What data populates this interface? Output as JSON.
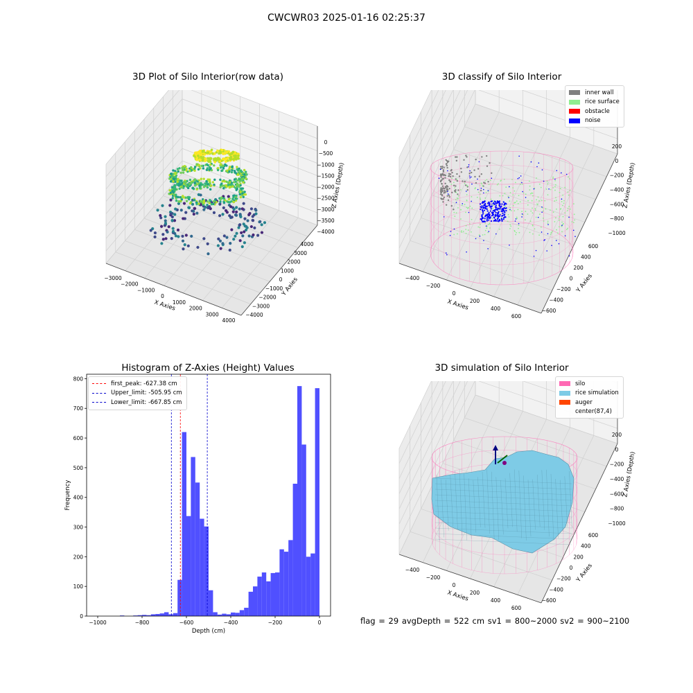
{
  "suptitle": "CWCWR03 2025-01-16 02:25:37",
  "footer": "flag = 29  avgDepth = 522 cm  sv1 = 800~2000  sv2 = 900~2100",
  "colors": {
    "hist_bar": "#4d4dff",
    "first_peak": "#ff0000",
    "limits": "#0000cc",
    "inner_wall": "#808080",
    "rice_surface": "#90ee90",
    "obstacle": "#ff0000",
    "noise": "#0000ff",
    "silo": "#ff69b4",
    "rice_simulation": "#7ecbe6",
    "auger": "#ff4500"
  },
  "chart_data": [
    {
      "type": "scatter",
      "dimension": "3d",
      "title": "3D Plot of Silo Interior(row data)",
      "xlabel": "X Axies",
      "ylabel": "Y Axies",
      "zlabel": "Z Axies (Depth)",
      "xticks": [
        "−3000",
        "−2000",
        "−1000",
        "0",
        "1000",
        "2000",
        "3000",
        "4000"
      ],
      "yticks": [
        "−4000",
        "−3000",
        "−2000",
        "−1000",
        "0",
        "1000",
        "2000",
        "3000",
        "4000"
      ],
      "zticks": [
        "0",
        "−500",
        "−1000",
        "−1500",
        "−2000",
        "−2500",
        "−3000",
        "−3500",
        "−4000"
      ],
      "colormap": "viridis"
    },
    {
      "type": "scatter",
      "dimension": "3d",
      "title": "3D classify of Silo Interior",
      "xlabel": "X Axies",
      "ylabel": "Y Axies",
      "zlabel": "Z Axies (Depth)",
      "xticks": [
        "−400",
        "−200",
        "0",
        "200",
        "400",
        "600"
      ],
      "yticks": [
        "−600",
        "−400",
        "−200",
        "0",
        "200",
        "400",
        "600"
      ],
      "zticks": [
        "200",
        "0",
        "−200",
        "−400",
        "−600",
        "−800",
        "−1000"
      ],
      "legend": [
        "inner wall",
        "rice surface",
        "obstacle",
        "noise"
      ],
      "legend_position": "top-right"
    },
    {
      "type": "bar",
      "title": "Histogram of Z-Axies (Height) Values",
      "xlabel": "Depth (cm)",
      "ylabel": "Frequency",
      "xlim": [
        -1050,
        50
      ],
      "ylim": [
        0,
        815
      ],
      "xticks": [
        -1000,
        -800,
        -600,
        -400,
        -200,
        0
      ],
      "yticks": [
        0,
        100,
        200,
        300,
        400,
        500,
        600,
        700,
        800
      ],
      "tick_labels_x": [
        "−1000",
        "−800",
        "−600",
        "−400",
        "−200",
        "0"
      ],
      "bin_width": 20,
      "bins": [
        {
          "x": -1000,
          "count": 0
        },
        {
          "x": -980,
          "count": 0
        },
        {
          "x": -960,
          "count": 0
        },
        {
          "x": -940,
          "count": 0
        },
        {
          "x": -920,
          "count": 0
        },
        {
          "x": -900,
          "count": 2
        },
        {
          "x": -880,
          "count": 0
        },
        {
          "x": -860,
          "count": 0
        },
        {
          "x": -840,
          "count": 2
        },
        {
          "x": -820,
          "count": 3
        },
        {
          "x": -800,
          "count": 4
        },
        {
          "x": -780,
          "count": 3
        },
        {
          "x": -760,
          "count": 6
        },
        {
          "x": -740,
          "count": 7
        },
        {
          "x": -720,
          "count": 9
        },
        {
          "x": -700,
          "count": 13
        },
        {
          "x": -680,
          "count": 6
        },
        {
          "x": -660,
          "count": 10
        },
        {
          "x": -640,
          "count": 122
        },
        {
          "x": -620,
          "count": 620
        },
        {
          "x": -600,
          "count": 337
        },
        {
          "x": -580,
          "count": 536
        },
        {
          "x": -560,
          "count": 450
        },
        {
          "x": -540,
          "count": 328
        },
        {
          "x": -520,
          "count": 302
        },
        {
          "x": -500,
          "count": 87
        },
        {
          "x": -480,
          "count": 13
        },
        {
          "x": -460,
          "count": 5
        },
        {
          "x": -440,
          "count": 8
        },
        {
          "x": -420,
          "count": 6
        },
        {
          "x": -400,
          "count": 12
        },
        {
          "x": -380,
          "count": 11
        },
        {
          "x": -360,
          "count": 20
        },
        {
          "x": -340,
          "count": 28
        },
        {
          "x": -320,
          "count": 82
        },
        {
          "x": -300,
          "count": 100
        },
        {
          "x": -280,
          "count": 133
        },
        {
          "x": -260,
          "count": 147
        },
        {
          "x": -240,
          "count": 117
        },
        {
          "x": -220,
          "count": 145
        },
        {
          "x": -200,
          "count": 147
        },
        {
          "x": -180,
          "count": 225
        },
        {
          "x": -160,
          "count": 217
        },
        {
          "x": -140,
          "count": 256
        },
        {
          "x": -120,
          "count": 446
        },
        {
          "x": -100,
          "count": 775
        },
        {
          "x": -80,
          "count": 578
        },
        {
          "x": -60,
          "count": 200
        },
        {
          "x": -40,
          "count": 211
        },
        {
          "x": -20,
          "count": 768
        }
      ],
      "vlines": [
        {
          "label": "first_peak: -627.38 cm",
          "x": -627.38,
          "color": "#ff0000"
        },
        {
          "label": "Upper_limit: -505.95 cm",
          "x": -505.95,
          "color": "#0000cc"
        },
        {
          "label": "Lower_limit: -667.85 cm",
          "x": -667.85,
          "color": "#0000cc"
        }
      ],
      "legend_position": "top-left"
    },
    {
      "type": "surface",
      "dimension": "3d",
      "title": "3D simulation of Silo Interior",
      "xlabel": "X Axies",
      "ylabel": "Y Axies",
      "zlabel": "Z Axies (Depth)",
      "xticks": [
        "−400",
        "−200",
        "0",
        "200",
        "400",
        "600"
      ],
      "yticks": [
        "−600",
        "−400",
        "−200",
        "0",
        "200",
        "400",
        "600"
      ],
      "zticks": [
        "200",
        "0",
        "−200",
        "−400",
        "−600",
        "−800",
        "−1000"
      ],
      "legend": [
        "silo",
        "rice simulation",
        "auger",
        "center(87,4)"
      ],
      "legend_position": "top-right"
    }
  ]
}
